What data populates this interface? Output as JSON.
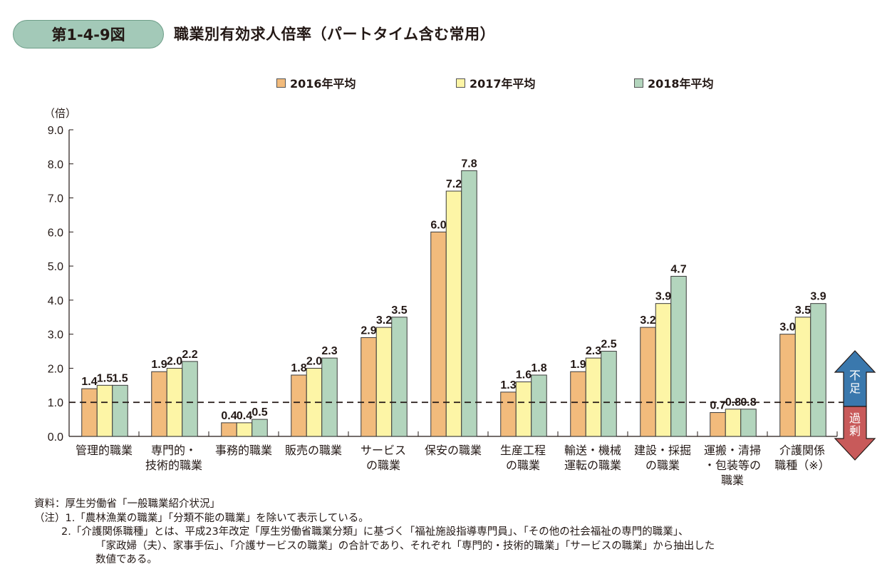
{
  "figure": {
    "number": "第1-4-9図",
    "title": "職業別有効求人倍率（パートタイム含む常用）"
  },
  "indicator": {
    "up_label": "不足",
    "down_label": "過剰",
    "up_color": "#3a78ad",
    "down_color": "#c85a5a"
  },
  "notes": {
    "source": "資料：厚生労働省「一般職業紹介状況」",
    "note1": "（注）1.「農林漁業の職業」「分類不能の職業」を除いて表示している。",
    "note2_line1": "2.「介護関係職種」とは、平成23年改定「厚生労働省職業分類」に基づく「福祉施設指導専門員」、「その他の社会福祉の専門的職業」、",
    "note2_line2": "「家政婦（夫）、家事手伝」、「介護サービスの職業」の合計であり、それぞれ「専門的・技術的職業」「サービスの職業」から抽出した",
    "note2_line3": "数値である。"
  },
  "chart_data": {
    "type": "bar",
    "title": "職業別有効求人倍率（パートタイム含む常用）",
    "xlabel": "",
    "ylabel": "（倍）",
    "ylim": [
      0,
      9
    ],
    "yticks": [
      "0.0",
      "1.0",
      "2.0",
      "3.0",
      "4.0",
      "5.0",
      "6.0",
      "7.0",
      "8.0",
      "9.0"
    ],
    "grid": false,
    "legend_position": "top",
    "reference_line": {
      "value": 1.0,
      "style": "dashed"
    },
    "categories": [
      [
        "管理的職業"
      ],
      [
        "専門的・",
        "技術的職業"
      ],
      [
        "事務的職業"
      ],
      [
        "販売の職業"
      ],
      [
        "サービス",
        "の職業"
      ],
      [
        "保安の職業"
      ],
      [
        "生産工程",
        "の職業"
      ],
      [
        "輸送・機械",
        "運転の職業"
      ],
      [
        "建設・採掘",
        "の職業"
      ],
      [
        "運搬・清掃",
        "・包装等の",
        "職業"
      ],
      [
        "介護関係",
        "職種（※）"
      ]
    ],
    "series": [
      {
        "name": "2016年平均",
        "color": "#f2bb7c",
        "values": [
          1.4,
          1.9,
          0.4,
          1.8,
          2.9,
          6.0,
          1.3,
          1.9,
          3.2,
          0.7,
          3.0
        ],
        "labels": [
          "1.4",
          "1.9",
          "0.4",
          "1.8",
          "2.9",
          "6.0",
          "1.3",
          "1.9",
          "3.2",
          "0.7",
          "3.0"
        ]
      },
      {
        "name": "2017年平均",
        "color": "#fdf5a6",
        "values": [
          1.5,
          2.0,
          0.4,
          2.0,
          3.2,
          7.2,
          1.6,
          2.3,
          3.9,
          0.8,
          3.5
        ],
        "labels": [
          "1.5",
          "2.0",
          "0.4",
          "2.0",
          "3.2",
          "7.2",
          "1.6",
          "2.3",
          "3.9",
          "0.8",
          "3.5"
        ]
      },
      {
        "name": "2018年平均",
        "color": "#b3d5bd",
        "values": [
          1.5,
          2.2,
          0.5,
          2.3,
          3.5,
          7.8,
          1.8,
          2.5,
          4.7,
          0.8,
          3.9
        ],
        "labels": [
          "1.5",
          "2.2",
          "0.5",
          "2.3",
          "3.5",
          "7.8",
          "1.8",
          "2.5",
          "4.7",
          "0.8",
          "3.9"
        ]
      }
    ]
  }
}
